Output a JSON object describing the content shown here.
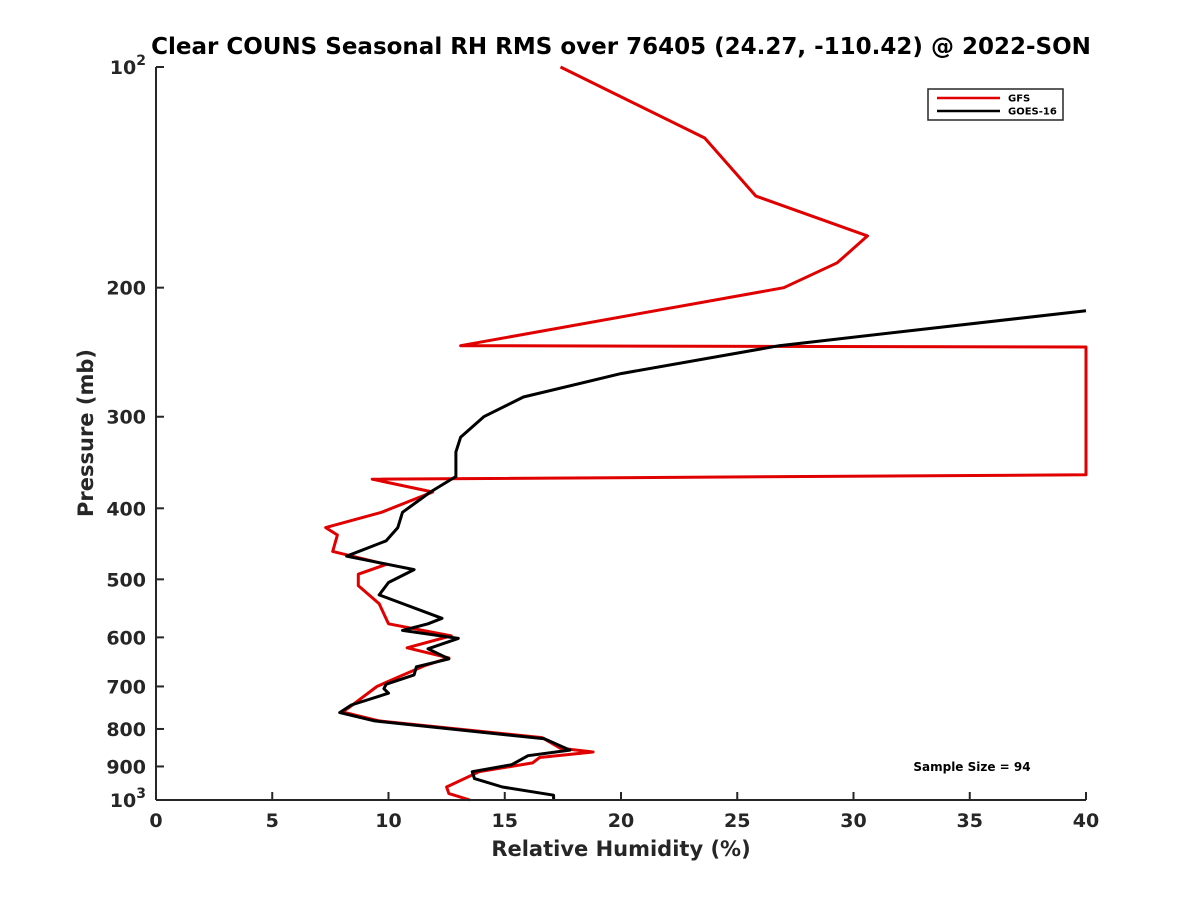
{
  "chart_data": {
    "type": "line",
    "title": "Clear COUNS Seasonal RH RMS over 76405 (24.27, -110.42) @ 2022-SON",
    "xlabel": "Relative Humidity (%)",
    "ylabel": "Pressure (mb)",
    "xlim": [
      0,
      40
    ],
    "ylim": [
      100,
      1000
    ],
    "y_scale": "log",
    "y_reversed": true,
    "x_ticks": [
      "0",
      "5",
      "10",
      "15",
      "20",
      "25",
      "30",
      "35",
      "40"
    ],
    "y_ticks": [
      {
        "value": 100,
        "base": "10",
        "exp": "2"
      },
      {
        "value": 200,
        "label": "200"
      },
      {
        "value": 300,
        "label": "300"
      },
      {
        "value": 400,
        "label": "400"
      },
      {
        "value": 500,
        "label": "500"
      },
      {
        "value": 600,
        "label": "600"
      },
      {
        "value": 700,
        "label": "700"
      },
      {
        "value": 800,
        "label": "800"
      },
      {
        "value": 900,
        "label": "900"
      },
      {
        "value": 1000,
        "base": "10",
        "exp": "3"
      }
    ],
    "legend_position": "top-right",
    "grid": false,
    "annotation": "Sample Size = 94",
    "series": [
      {
        "name": "GFS",
        "color": "#e00000",
        "points": [
          [
            17.4,
            100
          ],
          [
            23.6,
            125
          ],
          [
            25.8,
            150
          ],
          [
            30.6,
            170
          ],
          [
            29.3,
            185
          ],
          [
            27.0,
            200
          ],
          [
            13.1,
            240
          ],
          [
            40,
            241
          ],
          [
            40,
            360
          ],
          [
            9.3,
            365
          ],
          [
            11.9,
            380
          ],
          [
            9.7,
            405
          ],
          [
            7.3,
            425
          ],
          [
            7.8,
            435
          ],
          [
            7.6,
            458
          ],
          [
            9.9,
            477
          ],
          [
            8.7,
            492
          ],
          [
            8.7,
            510
          ],
          [
            9.6,
            540
          ],
          [
            10.0,
            575
          ],
          [
            12.7,
            597
          ],
          [
            10.8,
            620
          ],
          [
            12.6,
            640
          ],
          [
            11.6,
            655
          ],
          [
            10.4,
            680
          ],
          [
            9.5,
            700
          ],
          [
            8.3,
            748
          ],
          [
            8.0,
            758
          ],
          [
            9.6,
            780
          ],
          [
            16.6,
            822
          ],
          [
            17.4,
            850
          ],
          [
            18.8,
            860
          ],
          [
            16.5,
            875
          ],
          [
            16.2,
            890
          ],
          [
            13.9,
            915
          ],
          [
            12.5,
            960
          ],
          [
            12.6,
            980
          ],
          [
            13.5,
            1000
          ]
        ]
      },
      {
        "name": "GOES-16",
        "color": "#000000",
        "points": [
          [
            40,
            215
          ],
          [
            26.8,
            240
          ],
          [
            20.0,
            262
          ],
          [
            15.8,
            282
          ],
          [
            14.1,
            300
          ],
          [
            13.1,
            320
          ],
          [
            12.9,
            335
          ],
          [
            12.9,
            362
          ],
          [
            11.8,
            380
          ],
          [
            10.6,
            405
          ],
          [
            10.4,
            425
          ],
          [
            9.9,
            443
          ],
          [
            8.2,
            465
          ],
          [
            11.1,
            485
          ],
          [
            10.0,
            505
          ],
          [
            9.6,
            525
          ],
          [
            12.3,
            565
          ],
          [
            11.7,
            575
          ],
          [
            10.6,
            587
          ],
          [
            13.0,
            602
          ],
          [
            11.7,
            622
          ],
          [
            12.6,
            642
          ],
          [
            11.2,
            658
          ],
          [
            11.1,
            675
          ],
          [
            9.9,
            695
          ],
          [
            9.8,
            705
          ],
          [
            10.0,
            715
          ],
          [
            8.4,
            742
          ],
          [
            7.9,
            760
          ],
          [
            9.4,
            780
          ],
          [
            16.7,
            825
          ],
          [
            17.8,
            855
          ],
          [
            16.0,
            870
          ],
          [
            15.3,
            895
          ],
          [
            13.6,
            915
          ],
          [
            13.7,
            935
          ],
          [
            14.9,
            960
          ],
          [
            17.1,
            985
          ],
          [
            17.1,
            1000
          ]
        ]
      }
    ]
  }
}
